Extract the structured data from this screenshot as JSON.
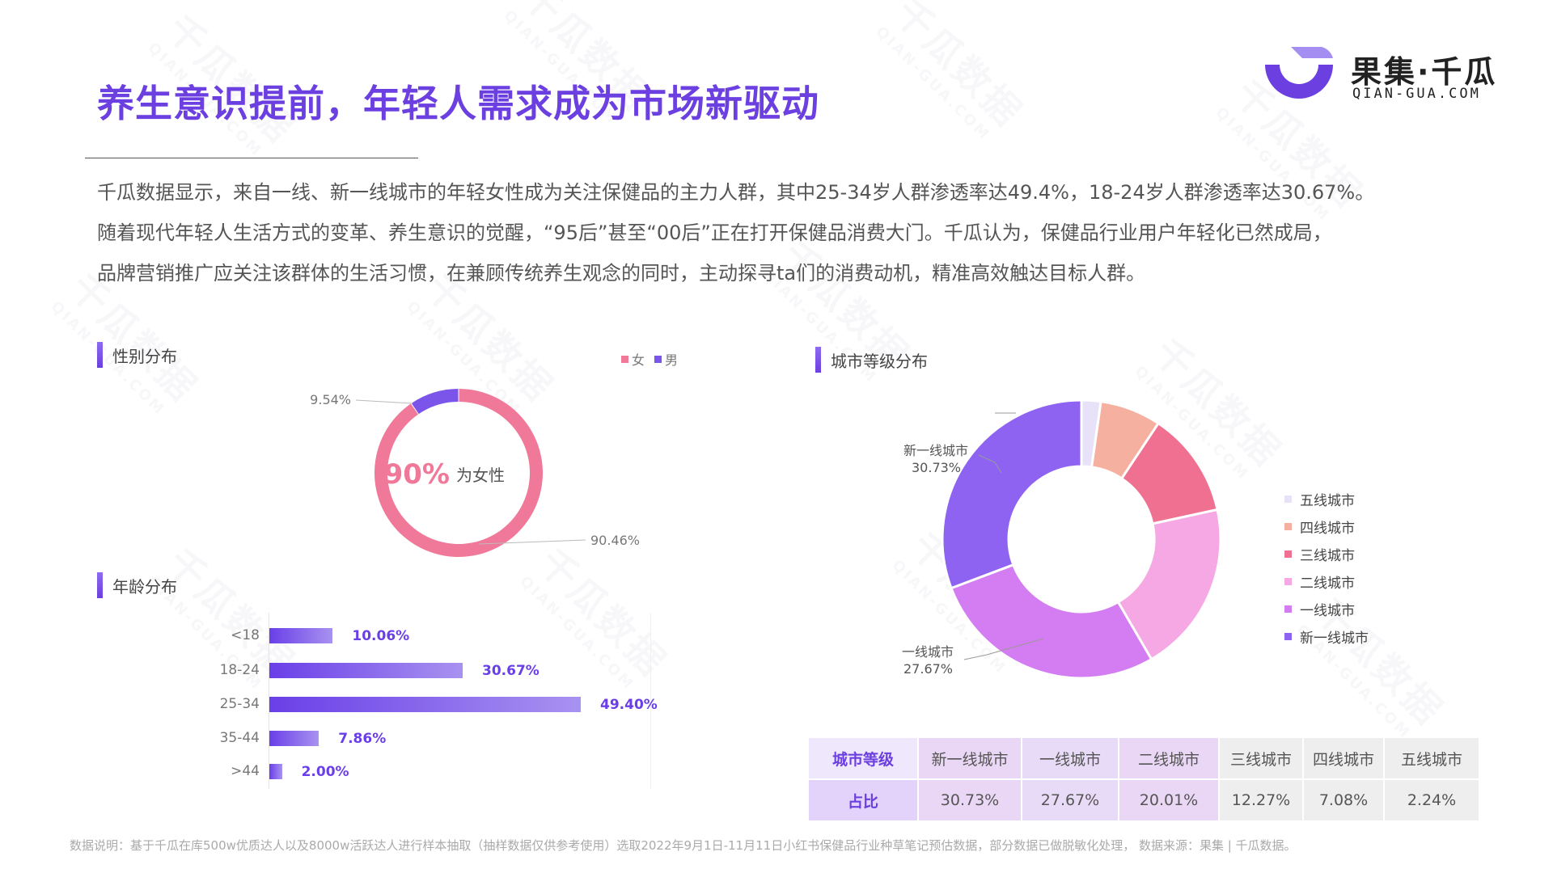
{
  "title": "养生意识提前，年轻人需求成为市场新驱动",
  "logo": {
    "cn": "果集·千瓜",
    "en": "QIAN-GUA.COM"
  },
  "intro": [
    "千瓜数据显示，来自一线、新一线城市的年轻女性成为关注保健品的主力人群，其中25-34岁人群渗透率达49.4%，18-24岁人群渗透率达30.67%。",
    "随着现代年轻人生活方式的变革、养生意识的觉醒，“95后”甚至“00后”正在打开保健品消费大门。千瓜认为，保健品行业用户年轻化已然成局，",
    "品牌营销推广应关注该群体的生活习惯，在兼顾传统养生观念的同时，主动探寻ta们的消费动机，精准高效触达目标人群。"
  ],
  "watermark": {
    "cn": "千瓜数据",
    "en": "QIAN-GUA.COM"
  },
  "colors": {
    "accent": "#6b3fe0",
    "female": "#f07898",
    "male": "#7b55ea",
    "city": [
      "#e8e2f8",
      "#f5b0a0",
      "#ef7090",
      "#f6a8e4",
      "#d47cf2",
      "#8e63f2"
    ]
  },
  "gender": {
    "section_label": "性别分布",
    "legend": [
      "女",
      "男"
    ],
    "center_value": "90%",
    "center_text": "为女性",
    "labels": [
      "9.54%",
      "90.46%"
    ]
  },
  "age": {
    "section_label": "年龄分布"
  },
  "city": {
    "section_label": "城市等级分布",
    "annot_xinyi_name": "新一线城市",
    "annot_xinyi_value": "30.73%",
    "annot_yi_name": "一线城市",
    "annot_yi_value": "27.67%",
    "table_header": "城市等级",
    "table_row": "占比"
  },
  "chart_data": [
    {
      "type": "pie",
      "title": "性别分布",
      "categories": [
        "女",
        "男"
      ],
      "values": [
        90.46,
        9.54
      ]
    },
    {
      "type": "bar",
      "title": "年龄分布",
      "categories": [
        "<18",
        "18-24",
        "25-34",
        "35-44",
        ">44"
      ],
      "values": [
        10.06,
        30.67,
        49.4,
        7.86,
        2.0
      ],
      "value_labels": [
        "10.06%",
        "30.67%",
        "49.40%",
        "7.86%",
        "2.00%"
      ],
      "xlim": [
        0,
        100
      ]
    },
    {
      "type": "pie",
      "title": "城市等级分布",
      "categories": [
        "五线城市",
        "四线城市",
        "三线城市",
        "二线城市",
        "一线城市",
        "新一线城市"
      ],
      "values": [
        2.24,
        7.08,
        12.27,
        20.01,
        27.67,
        30.73
      ],
      "legend_order": [
        "五线城市",
        "四线城市",
        "三线城市",
        "二线城市",
        "一线城市",
        "新一线城市"
      ],
      "legend_position": "right"
    },
    {
      "type": "table",
      "columns": [
        "城市等级",
        "新一线城市",
        "一线城市",
        "二线城市",
        "三线城市",
        "四线城市",
        "五线城市"
      ],
      "rows": [
        [
          "占比",
          "30.73%",
          "27.67%",
          "20.01%",
          "12.27%",
          "7.08%",
          "2.24%"
        ]
      ]
    }
  ],
  "footer": "数据说明：基于千瓜在库500w优质达人以及8000w活跃达人进行样本抽取（抽样数据仅供参考使用）选取2022年9月1日-11月11日小红书保健品行业种草笔记预估数据，部分数据已做脱敏化处理， 数据来源：果集 | 千瓜数据。"
}
